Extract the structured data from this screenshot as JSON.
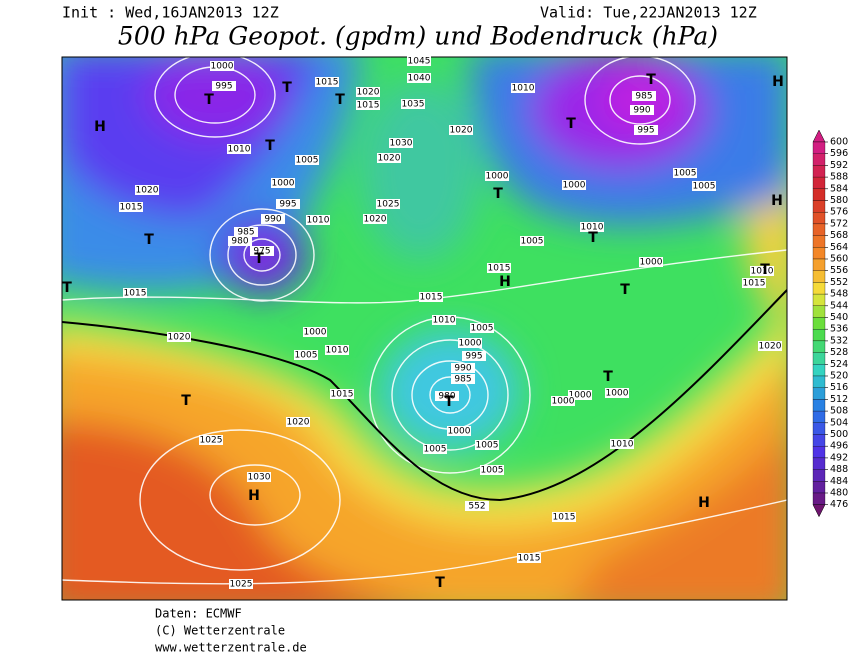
{
  "header": {
    "init": "Init : Wed,16JAN2013 12Z",
    "valid": "Valid: Tue,22JAN2013 12Z",
    "title": "500 hPa Geopot. (gpdm) und Bodendruck (hPa)"
  },
  "isobar_labels": [
    1000,
    995,
    1010,
    1005,
    1000,
    995,
    990,
    985,
    980,
    975,
    1020,
    1015,
    1015,
    1020,
    1000,
    1005,
    1010,
    1015,
    1010,
    1020,
    1025,
    1020,
    1030,
    1035,
    1040,
    1045,
    1020,
    1015,
    1015,
    1020,
    1010,
    985,
    990,
    995,
    1000,
    1005,
    1005,
    1000,
    1005,
    1010,
    1015,
    1000,
    1010,
    1015,
    1020,
    1015,
    1010,
    1005,
    1000,
    995,
    990,
    985,
    980,
    1000,
    1005,
    1005,
    1005,
    1000,
    1000,
    1000,
    1010,
    1020,
    1025,
    1030,
    552,
    1015,
    1015,
    1025
  ],
  "pressure_centers": [
    "T",
    "T",
    "T",
    "H",
    "T",
    "T",
    "T",
    "T",
    "T",
    "T",
    "T",
    "T",
    "H",
    "H",
    "T",
    "H",
    "T",
    "T",
    "T",
    "T",
    "H",
    "H",
    "T"
  ],
  "colorbar": {
    "values": [
      600,
      596,
      592,
      588,
      584,
      580,
      576,
      572,
      568,
      564,
      560,
      556,
      552,
      548,
      544,
      540,
      536,
      532,
      528,
      524,
      520,
      516,
      512,
      508,
      504,
      500,
      496,
      492,
      488,
      484,
      480,
      476
    ]
  },
  "footer": {
    "source": "Daten: ECMWF",
    "copyright": "(C) Wetterzentrale",
    "url": "www.wetterzentrale.de"
  }
}
